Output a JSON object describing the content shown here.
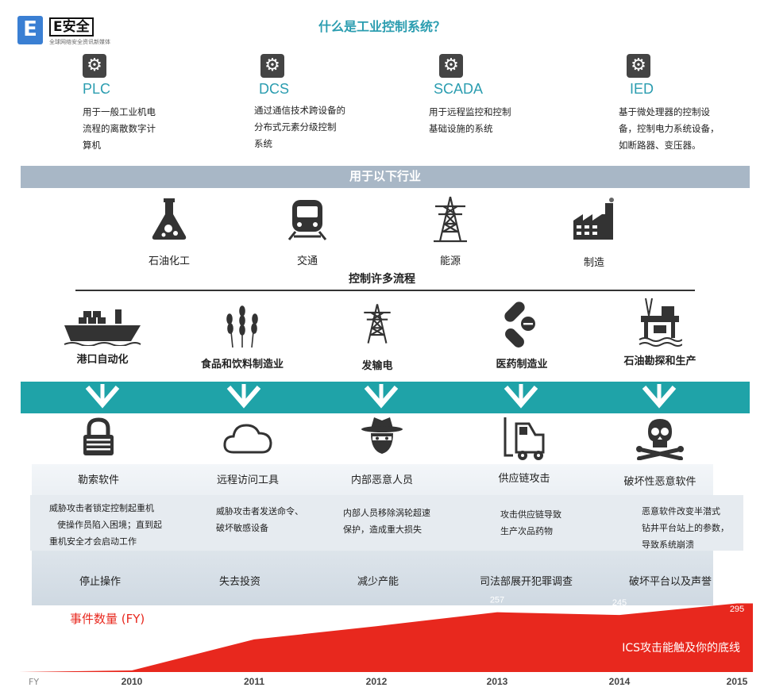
{
  "logo": {
    "brand": "E安全",
    "icon_letter": "E",
    "tagline": "全球网络安全资讯新媒体"
  },
  "title": "什么是工业控制系统？",
  "systems": [
    {
      "name": "PLC",
      "desc": [
        "用于一般工业机电",
        "流程的离散数字计",
        "算机"
      ]
    },
    {
      "name": "DCS",
      "desc": [
        "通过通信技术跨设备的",
        "分布式元素分级控制",
        "系统"
      ]
    },
    {
      "name": "SCADA",
      "desc": [
        "用于远程监控和控制",
        "基础设施的系统"
      ]
    },
    {
      "name": "IED",
      "desc": [
        "基于微处理器的控制设",
        "备，控制电力系统设备，",
        "如断路器、变压器。"
      ]
    }
  ],
  "band_industries": "用于以下行业",
  "industries": [
    {
      "label": "石油化工",
      "icon": "flask-icon"
    },
    {
      "label": "交通",
      "icon": "train-icon"
    },
    {
      "label": "能源",
      "icon": "power-tower-icon"
    },
    {
      "label": "制造",
      "icon": "factory-icon"
    }
  ],
  "process_title": "控制许多流程",
  "processes": [
    {
      "label": "港口自动化",
      "icon": "ship-icon"
    },
    {
      "label": "食品和饮料制造业",
      "icon": "wheat-icon"
    },
    {
      "label": "发输电",
      "icon": "power-tower-icon"
    },
    {
      "label": "医药制造业",
      "icon": "pills-icon"
    },
    {
      "label": "石油勘探和生产",
      "icon": "oil-rig-icon"
    }
  ],
  "threats": [
    {
      "label": "勒索软件",
      "icon": "lock-icon",
      "desc": [
        "威胁攻击者锁定控制起重机",
        "使操作员陷入困境；直到起",
        "重机安全才会启动工作"
      ],
      "impact": "停止操作"
    },
    {
      "label": "远程访问工具",
      "icon": "cloud-icon",
      "desc": [
        "威胁攻击者发送命令、",
        "破坏敏感设备"
      ],
      "impact": "失去投资"
    },
    {
      "label": "内部恶意人员",
      "icon": "spy-icon",
      "desc": [
        "内部人员移除涡轮超速",
        "保护，造成重大损失"
      ],
      "impact": "减少产能"
    },
    {
      "label": "供应链攻击",
      "icon": "forklift-icon",
      "desc": [
        "攻击供应链导致",
        "生产次品药物"
      ],
      "impact": "司法部展开犯罪调查"
    },
    {
      "label": "破坏性恶意软件",
      "icon": "skull-icon",
      "desc": [
        "恶意软件改变半潜式",
        "钻井平台站上的参数，",
        "导致系统崩溃"
      ],
      "impact": "破坏平台以及声誉"
    }
  ],
  "chart_data": {
    "type": "area",
    "title": "事件数量 (FY)",
    "xlabel": "FY",
    "x": [
      "2010",
      "2011",
      "2012",
      "2013",
      "2014",
      "2015"
    ],
    "values": [
      null,
      140,
      197,
      257,
      245,
      295
    ],
    "annotation": "ICS攻击能触及你的底线",
    "colors": {
      "area": "#e8281e"
    }
  }
}
